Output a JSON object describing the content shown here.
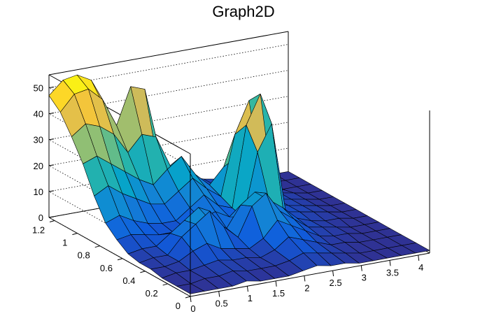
{
  "chart_data": {
    "type": "surface",
    "title": "Graph2D",
    "x_ticks": [
      "0",
      "0.5",
      "1",
      "1.5",
      "2",
      "2.5",
      "3",
      "3.5",
      "4"
    ],
    "y_ticks": [
      "0",
      "0.2",
      "0.4",
      "0.6",
      "0.8",
      "1",
      "1.2"
    ],
    "z_ticks": [
      "0",
      "10",
      "20",
      "30",
      "40",
      "50"
    ],
    "xlim": [
      0,
      4.2
    ],
    "ylim": [
      0,
      1.25
    ],
    "zlim": [
      0,
      55
    ],
    "grid": true,
    "palette": [
      "#352a87",
      "#0f5cdd",
      "#1481d6",
      "#06a4ca",
      "#2eb7a4",
      "#87bf77",
      "#d1bb59",
      "#fec832",
      "#f9fb0e"
    ],
    "surface_rows": [
      {
        "y": 1.25,
        "z": [
          47,
          52,
          53,
          50,
          38,
          26,
          20,
          16,
          12,
          9,
          6,
          4,
          3,
          2,
          2,
          1,
          1,
          1
        ]
      },
      {
        "y": 1.15,
        "z": [
          43,
          49,
          50,
          45,
          34,
          48,
          46,
          14,
          10,
          7,
          5,
          4,
          3,
          2,
          2,
          1,
          1,
          1
        ]
      },
      {
        "y": 1.05,
        "z": [
          36,
          40,
          38,
          34,
          26,
          32,
          30,
          18,
          12,
          9,
          7,
          5,
          3,
          2,
          2,
          1,
          1,
          1
        ]
      },
      {
        "y": 0.95,
        "z": [
          28,
          30,
          26,
          22,
          18,
          15,
          20,
          24,
          16,
          11,
          17,
          20,
          9,
          5,
          3,
          2,
          1,
          1
        ]
      },
      {
        "y": 0.85,
        "z": [
          18,
          21,
          17,
          14,
          11,
          10,
          14,
          18,
          13,
          9,
          32,
          44,
          8,
          4,
          3,
          2,
          1,
          1
        ]
      },
      {
        "y": 0.75,
        "z": [
          10,
          12,
          9,
          7,
          6,
          6,
          10,
          14,
          9,
          7,
          38,
          49,
          6,
          4,
          3,
          2,
          1,
          1
        ]
      },
      {
        "y": 0.65,
        "z": [
          6,
          7,
          6,
          5,
          5,
          5,
          8,
          10,
          7,
          6,
          30,
          40,
          5,
          4,
          3,
          2,
          1,
          1
        ]
      },
      {
        "y": 0.55,
        "z": [
          3,
          4,
          4,
          8,
          12,
          16,
          9,
          6,
          14,
          18,
          14,
          10,
          5,
          3,
          2,
          2,
          1,
          1
        ]
      },
      {
        "y": 0.45,
        "z": [
          2,
          3,
          3,
          9,
          13,
          17,
          10,
          5,
          16,
          20,
          12,
          8,
          4,
          3,
          2,
          1,
          1,
          1
        ]
      },
      {
        "y": 0.35,
        "z": [
          2,
          2,
          3,
          6,
          8,
          5,
          4,
          3,
          6,
          12,
          9,
          6,
          3,
          2,
          2,
          1,
          1,
          1
        ]
      },
      {
        "y": 0.25,
        "z": [
          1,
          2,
          2,
          3,
          4,
          3,
          3,
          2,
          4,
          8,
          6,
          4,
          2,
          2,
          1,
          1,
          1,
          1
        ]
      },
      {
        "y": 0.12,
        "z": [
          1,
          1,
          2,
          2,
          3,
          2,
          2,
          2,
          3,
          5,
          4,
          3,
          2,
          1,
          1,
          1,
          1,
          1
        ]
      },
      {
        "y": 0.0,
        "z": [
          1,
          1,
          1,
          1,
          2,
          1,
          1,
          1,
          2,
          3,
          2,
          2,
          1,
          1,
          1,
          1,
          1,
          1
        ]
      }
    ]
  }
}
